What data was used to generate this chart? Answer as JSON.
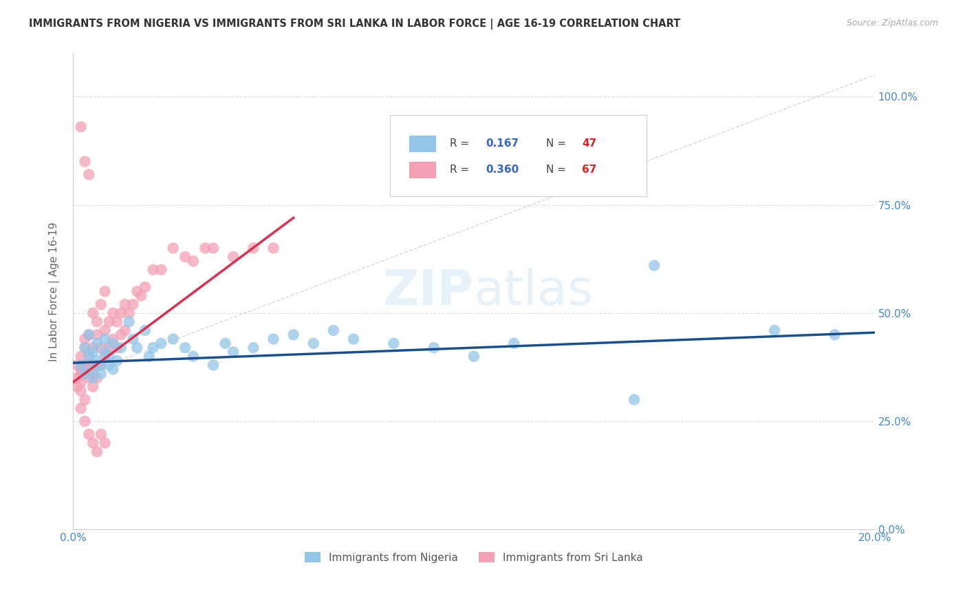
{
  "title": "IMMIGRANTS FROM NIGERIA VS IMMIGRANTS FROM SRI LANKA IN LABOR FORCE | AGE 16-19 CORRELATION CHART",
  "source": "Source: ZipAtlas.com",
  "ylabel": "In Labor Force | Age 16-19",
  "xlim": [
    0.0,
    0.2
  ],
  "ylim": [
    -0.05,
    1.1
  ],
  "plot_ylim": [
    0.0,
    1.1
  ],
  "yticks": [
    0.0,
    0.25,
    0.5,
    0.75,
    1.0
  ],
  "ytick_labels": [
    "0.0%",
    "25.0%",
    "50.0%",
    "75.0%",
    "100.0%"
  ],
  "xticks": [
    0.0,
    0.04,
    0.08,
    0.12,
    0.16,
    0.2
  ],
  "xtick_labels": [
    "0.0%",
    "",
    "",
    "",
    "",
    "20.0%"
  ],
  "nigeria_color": "#92C5E8",
  "srilanka_color": "#F4A0B5",
  "nigeria_line_color": "#1B4F8A",
  "srilanka_line_color": "#D93050",
  "diagonal_color": "#C8C8C8",
  "grid_color": "#DDDDDD",
  "title_color": "#333333",
  "axis_color": "#4488CC",
  "watermark": "ZIPatlas",
  "nigeria_scatter_x": [
    0.002,
    0.003,
    0.003,
    0.004,
    0.004,
    0.005,
    0.005,
    0.005,
    0.006,
    0.006,
    0.007,
    0.007,
    0.008,
    0.008,
    0.009,
    0.009,
    0.01,
    0.01,
    0.011,
    0.012,
    0.014,
    0.015,
    0.016,
    0.018,
    0.019,
    0.02,
    0.022,
    0.025,
    0.028,
    0.03,
    0.035,
    0.038,
    0.04,
    0.045,
    0.05,
    0.055,
    0.06,
    0.065,
    0.07,
    0.08,
    0.09,
    0.1,
    0.11,
    0.14,
    0.145,
    0.175,
    0.19
  ],
  "nigeria_scatter_y": [
    0.38,
    0.42,
    0.36,
    0.4,
    0.45,
    0.37,
    0.41,
    0.35,
    0.39,
    0.43,
    0.38,
    0.36,
    0.41,
    0.44,
    0.38,
    0.4,
    0.43,
    0.37,
    0.39,
    0.42,
    0.48,
    0.44,
    0.42,
    0.46,
    0.4,
    0.42,
    0.43,
    0.44,
    0.42,
    0.4,
    0.38,
    0.43,
    0.41,
    0.42,
    0.44,
    0.45,
    0.43,
    0.46,
    0.44,
    0.43,
    0.42,
    0.4,
    0.43,
    0.3,
    0.61,
    0.46,
    0.45
  ],
  "srilanka_scatter_x": [
    0.001,
    0.001,
    0.001,
    0.002,
    0.002,
    0.002,
    0.002,
    0.002,
    0.003,
    0.003,
    0.003,
    0.003,
    0.003,
    0.004,
    0.004,
    0.004,
    0.004,
    0.005,
    0.005,
    0.005,
    0.005,
    0.005,
    0.006,
    0.006,
    0.006,
    0.006,
    0.007,
    0.007,
    0.007,
    0.008,
    0.008,
    0.008,
    0.009,
    0.009,
    0.01,
    0.01,
    0.011,
    0.011,
    0.012,
    0.012,
    0.013,
    0.013,
    0.014,
    0.015,
    0.016,
    0.017,
    0.018,
    0.02,
    0.022,
    0.025,
    0.028,
    0.03,
    0.033,
    0.035,
    0.04,
    0.045,
    0.05,
    0.002,
    0.003,
    0.004,
    0.005,
    0.006,
    0.007,
    0.008,
    0.002,
    0.003,
    0.004
  ],
  "srilanka_scatter_y": [
    0.35,
    0.38,
    0.33,
    0.36,
    0.4,
    0.34,
    0.37,
    0.32,
    0.38,
    0.42,
    0.36,
    0.44,
    0.3,
    0.38,
    0.45,
    0.35,
    0.4,
    0.36,
    0.5,
    0.42,
    0.38,
    0.33,
    0.45,
    0.48,
    0.38,
    0.35,
    0.52,
    0.42,
    0.38,
    0.55,
    0.46,
    0.4,
    0.48,
    0.42,
    0.5,
    0.44,
    0.48,
    0.42,
    0.5,
    0.45,
    0.52,
    0.46,
    0.5,
    0.52,
    0.55,
    0.54,
    0.56,
    0.6,
    0.6,
    0.65,
    0.63,
    0.62,
    0.65,
    0.65,
    0.63,
    0.65,
    0.65,
    0.28,
    0.25,
    0.22,
    0.2,
    0.18,
    0.22,
    0.2,
    0.93,
    0.85,
    0.82
  ],
  "srilanka_trend_x0": 0.0,
  "srilanka_trend_y0": 0.34,
  "srilanka_trend_x1": 0.055,
  "srilanka_trend_y1": 0.72,
  "nigeria_trend_x0": 0.0,
  "nigeria_trend_y0": 0.385,
  "nigeria_trend_x1": 0.2,
  "nigeria_trend_y1": 0.455
}
